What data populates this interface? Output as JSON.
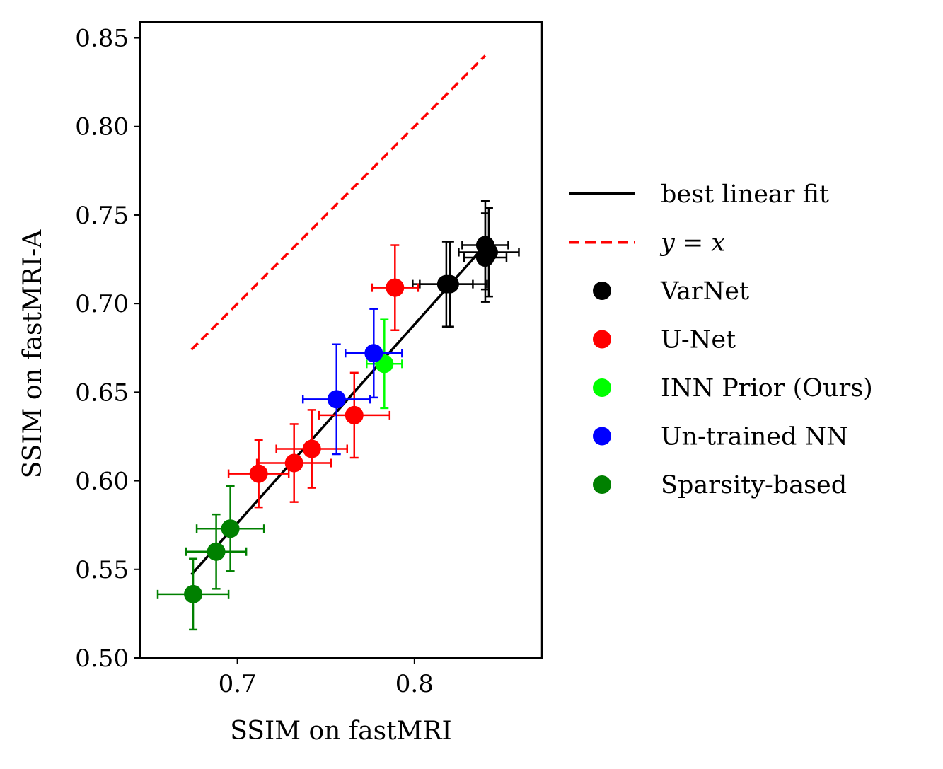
{
  "chart_data": {
    "type": "scatter",
    "xlabel": "SSIM on fastMRI",
    "ylabel": "SSIM on fastMRI-A",
    "xlim": [
      0.645,
      0.872
    ],
    "ylim": [
      0.5,
      0.859
    ],
    "xticks": [
      0.7,
      0.8
    ],
    "xtick_labels": [
      "0.7",
      "0.8"
    ],
    "yticks": [
      0.5,
      0.55,
      0.6,
      0.65,
      0.7,
      0.75,
      0.8,
      0.85
    ],
    "ytick_labels": [
      "0.50",
      "0.55",
      "0.60",
      "0.65",
      "0.70",
      "0.75",
      "0.80",
      "0.85"
    ],
    "grid": false,
    "legend_position": "right, outside plot",
    "lines": [
      {
        "name": "best linear fit",
        "label": "best linear fit",
        "color": "#000000",
        "style": "solid",
        "x": [
          0.674,
          0.84
        ],
        "y": [
          0.547,
          0.733
        ]
      },
      {
        "name": "y=x",
        "label": "y = x",
        "color": "#ff0000",
        "style": "dashed",
        "x": [
          0.674,
          0.84
        ],
        "y": [
          0.674,
          0.84
        ]
      }
    ],
    "series": [
      {
        "name": "VarNet",
        "color": "#000000",
        "points": [
          {
            "x": 0.84,
            "y": 0.733,
            "xerr": 0.013,
            "yerr": 0.025
          },
          {
            "x": 0.842,
            "y": 0.729,
            "xerr": 0.017,
            "yerr": 0.025
          },
          {
            "x": 0.84,
            "y": 0.726,
            "xerr": 0.012,
            "yerr": 0.025
          },
          {
            "x": 0.82,
            "y": 0.711,
            "xerr": 0.021,
            "yerr": 0.024
          },
          {
            "x": 0.818,
            "y": 0.711,
            "xerr": 0.015,
            "yerr": 0.024
          }
        ]
      },
      {
        "name": "U-Net",
        "color": "#ff0000",
        "points": [
          {
            "x": 0.789,
            "y": 0.709,
            "xerr": 0.013,
            "yerr": 0.024
          },
          {
            "x": 0.766,
            "y": 0.637,
            "xerr": 0.02,
            "yerr": 0.024
          },
          {
            "x": 0.742,
            "y": 0.618,
            "xerr": 0.02,
            "yerr": 0.022
          },
          {
            "x": 0.732,
            "y": 0.61,
            "xerr": 0.021,
            "yerr": 0.022
          },
          {
            "x": 0.712,
            "y": 0.604,
            "xerr": 0.017,
            "yerr": 0.019
          }
        ]
      },
      {
        "name": "INN Prior (Ours)",
        "color": "#00ff00",
        "points": [
          {
            "x": 0.783,
            "y": 0.666,
            "xerr": 0.01,
            "yerr": 0.025
          }
        ]
      },
      {
        "name": "Un-trained NN",
        "color": "#0000ff",
        "points": [
          {
            "x": 0.777,
            "y": 0.672,
            "xerr": 0.016,
            "yerr": 0.025
          },
          {
            "x": 0.756,
            "y": 0.646,
            "xerr": 0.019,
            "yerr": 0.031
          }
        ]
      },
      {
        "name": "Sparsity-based",
        "color": "#008000",
        "points": [
          {
            "x": 0.696,
            "y": 0.573,
            "xerr": 0.019,
            "yerr": 0.024
          },
          {
            "x": 0.688,
            "y": 0.56,
            "xerr": 0.017,
            "yerr": 0.021
          },
          {
            "x": 0.675,
            "y": 0.536,
            "xerr": 0.02,
            "yerr": 0.02
          }
        ]
      }
    ]
  }
}
